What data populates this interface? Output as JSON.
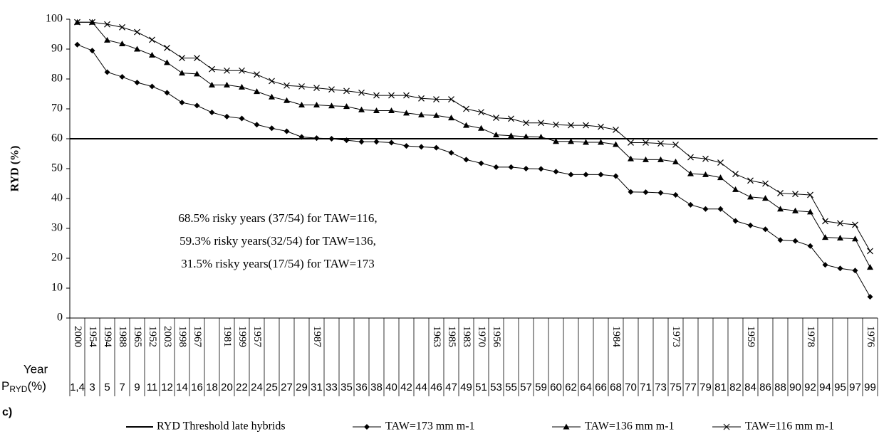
{
  "chart_data": {
    "type": "line",
    "panel_label": "c)",
    "y_label": "RYD (%)",
    "row_labels": {
      "year": "Year",
      "p_main": "P",
      "p_sub": "RYD",
      "p_suffix": "(%)"
    },
    "categories": [
      "1,4",
      "3",
      "5",
      "7",
      "9",
      "11",
      "12",
      "14",
      "16",
      "18",
      "20",
      "22",
      "24",
      "25",
      "27",
      "29",
      "31",
      "33",
      "35",
      "36",
      "38",
      "40",
      "42",
      "44",
      "46",
      "47",
      "49",
      "51",
      "53",
      "55",
      "57",
      "59",
      "60",
      "62",
      "64",
      "66",
      "68",
      "70",
      "71",
      "73",
      "75",
      "77",
      "79",
      "81",
      "82",
      "84",
      "86",
      "88",
      "90",
      "92",
      "94",
      "95",
      "97",
      "99"
    ],
    "years": [
      "2000",
      "1954",
      "1994",
      "1988",
      "1965",
      "1952",
      "2003",
      "1998",
      "1967",
      null,
      "1981",
      "1999",
      "1957",
      null,
      null,
      null,
      "1987",
      null,
      null,
      null,
      null,
      null,
      null,
      null,
      "1963",
      "1985",
      "1983",
      "1970",
      "1956",
      null,
      null,
      null,
      null,
      null,
      null,
      null,
      "1984",
      null,
      null,
      null,
      "1973",
      null,
      null,
      null,
      null,
      "1959",
      null,
      null,
      null,
      "1978",
      null,
      null,
      null,
      "1976"
    ],
    "threshold": {
      "name": "RYD Threshold late hybrids",
      "value": 60,
      "color": "#000000"
    },
    "series": [
      {
        "name": "TAW=173 mm m-1",
        "marker": "diamond",
        "color": "#000000",
        "values": [
          91.5,
          89.5,
          82.3,
          80.7,
          78.8,
          77.5,
          75.4,
          72.1,
          71.1,
          68.8,
          67.4,
          66.8,
          64.7,
          63.5,
          62.5,
          60.6,
          60.2,
          60.0,
          59.5,
          59.0,
          59.0,
          58.7,
          57.6,
          57.3,
          57.0,
          55.3,
          53.0,
          51.8,
          50.5,
          50.5,
          50.0,
          49.9,
          49.0,
          48.0,
          48.0,
          48.0,
          47.5,
          42.2,
          42.1,
          41.9,
          41.2,
          37.9,
          36.5,
          36.5,
          32.5,
          31.0,
          29.7,
          26.1,
          25.8,
          24.1,
          17.8,
          16.6,
          15.9,
          7.1
        ]
      },
      {
        "name": "TAW=136 mm m-1",
        "marker": "triangle",
        "color": "#000000",
        "values": [
          99,
          99,
          93,
          91.8,
          90,
          88,
          85.5,
          82,
          81.7,
          78,
          78,
          77.3,
          75.8,
          74,
          72.8,
          71.3,
          71.3,
          71,
          70.8,
          69.7,
          69.4,
          69.4,
          68.6,
          68,
          67.8,
          67,
          64.5,
          63.5,
          61.3,
          61,
          60.7,
          60.6,
          59.1,
          59.1,
          58.8,
          58.8,
          58.1,
          53.3,
          53,
          53,
          52.3,
          48.3,
          48,
          47,
          43,
          40.5,
          40.1,
          36.5,
          35.9,
          35.5,
          27,
          26.8,
          26.5,
          17
        ]
      },
      {
        "name": "TAW=116 mm m-1",
        "marker": "cross",
        "color": "#000000",
        "values": [
          99,
          99,
          98.3,
          97.3,
          95.7,
          93.1,
          90.4,
          87,
          87,
          83.3,
          82.8,
          82.8,
          81.5,
          79.3,
          77.8,
          77.5,
          77,
          76.5,
          76,
          75.4,
          74.5,
          74.5,
          74.5,
          73.5,
          73.2,
          73.2,
          70,
          68.9,
          67,
          66.7,
          65.3,
          65.3,
          64.7,
          64.5,
          64.5,
          64,
          63,
          58.7,
          58.7,
          58.4,
          58,
          53.8,
          53.3,
          52,
          48.2,
          46,
          45,
          41.8,
          41.5,
          41.2,
          32.4,
          31.7,
          31.2,
          22.4
        ]
      }
    ],
    "annotation": [
      "68.5% risky years (37/54) for TAW=116,",
      "59.3% risky years(32/54) for TAW=136,",
      "31.5% risky years(17/54) for TAW=173"
    ],
    "ylim": [
      0,
      100
    ],
    "yticks": [
      0,
      10,
      20,
      30,
      40,
      50,
      60,
      70,
      80,
      90,
      100
    ]
  }
}
